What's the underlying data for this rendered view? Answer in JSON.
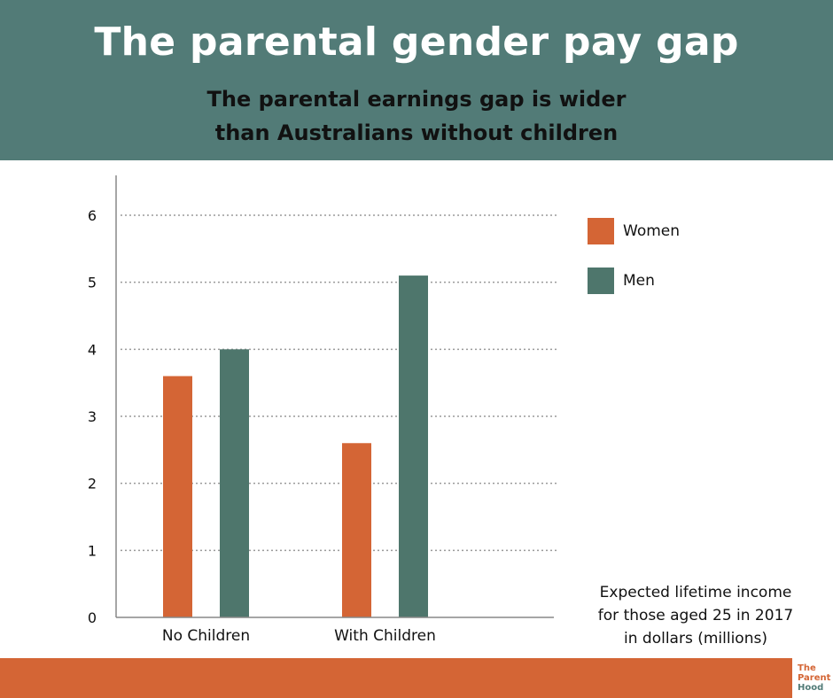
{
  "header": {
    "title": "The parental gender pay gap",
    "subtitle_line1": "The parental earnings gap is wider",
    "subtitle_line2": "than Australians without children"
  },
  "note": {
    "line1": "Expected lifetime income",
    "line2": "for those aged 25 in 2017",
    "line3": "in dollars (millions)"
  },
  "logo": {
    "line1": "The",
    "line2": "Parent",
    "line3": "Hood"
  },
  "colors": {
    "header_bg": "#527b77",
    "women": "#d46535",
    "men": "#4e766c",
    "footer_bg": "#d46535"
  },
  "chart_data": {
    "type": "bar",
    "categories": [
      "No Children",
      "With Children"
    ],
    "series": [
      {
        "name": "Women",
        "color": "#d46535",
        "values": [
          3.6,
          2.6
        ]
      },
      {
        "name": "Men",
        "color": "#4e766c",
        "values": [
          4.0,
          5.1
        ]
      }
    ],
    "yticks": [
      "0",
      "1",
      "2",
      "3",
      "4",
      "5",
      "6"
    ],
    "ylim": [
      0,
      6
    ],
    "grid": true,
    "legend": "right"
  }
}
